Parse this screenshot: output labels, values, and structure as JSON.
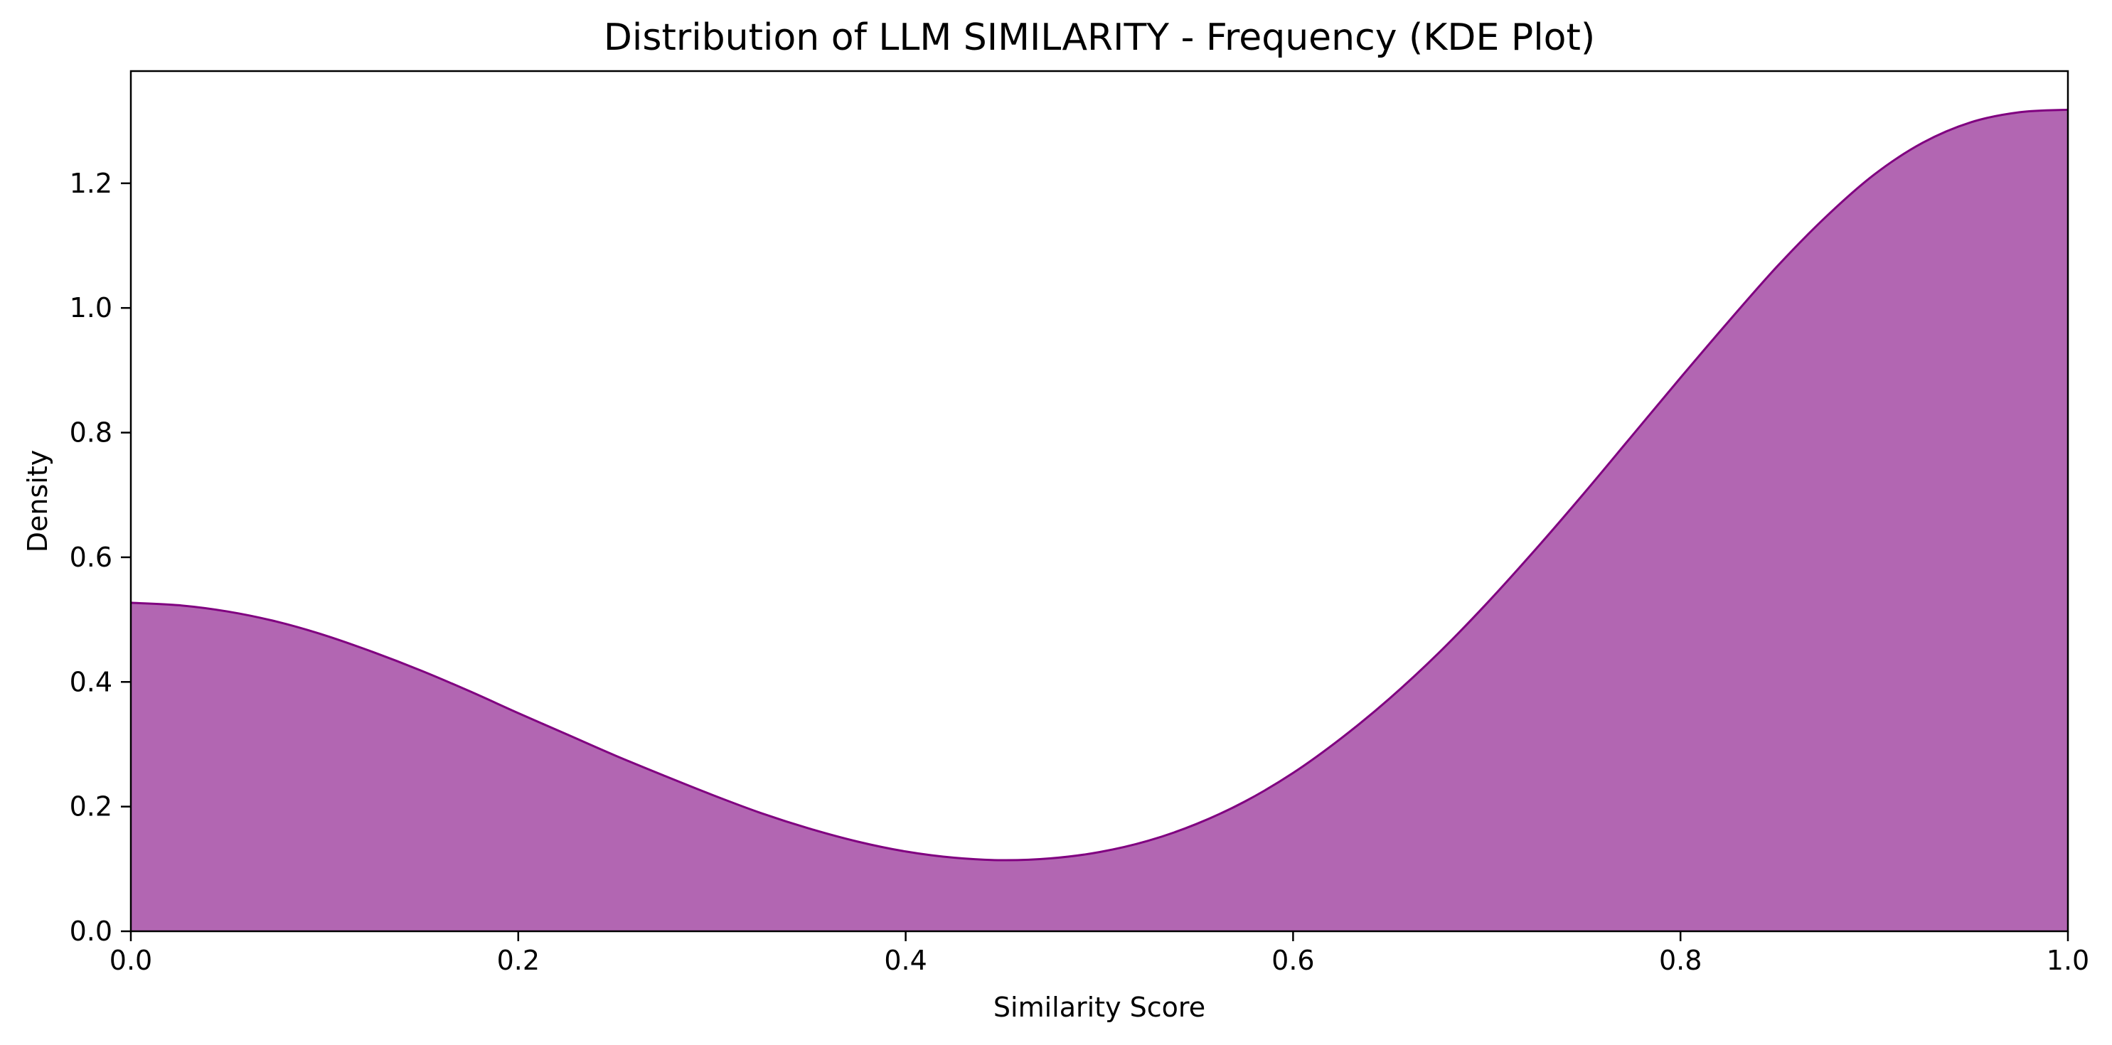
{
  "chart_data": {
    "type": "area",
    "title": "Distribution of LLM SIMILARITY - Frequency (KDE Plot)",
    "xlabel": "Similarity Score",
    "ylabel": "Density",
    "xlim": [
      0.0,
      1.0
    ],
    "ylim": [
      0.0,
      1.38
    ],
    "x_ticks": [
      "0.0",
      "0.2",
      "0.4",
      "0.6",
      "0.8",
      "1.0"
    ],
    "y_ticks": [
      "0.0",
      "0.2",
      "0.4",
      "0.6",
      "0.8",
      "1.0",
      "1.2"
    ],
    "grid": false,
    "fill_color": "#b266b2",
    "line_color": "#800080",
    "series": [
      {
        "x": [
          0.0,
          0.025,
          0.05,
          0.075,
          0.1,
          0.125,
          0.15,
          0.175,
          0.2,
          0.225,
          0.25,
          0.275,
          0.3,
          0.325,
          0.35,
          0.375,
          0.4,
          0.425,
          0.45,
          0.475,
          0.5,
          0.525,
          0.55,
          0.575,
          0.6,
          0.625,
          0.65,
          0.675,
          0.7,
          0.725,
          0.75,
          0.775,
          0.8,
          0.825,
          0.85,
          0.875,
          0.9,
          0.925,
          0.95,
          0.975,
          1.0
        ],
        "y": [
          0.527,
          0.523,
          0.513,
          0.497,
          0.475,
          0.448,
          0.418,
          0.385,
          0.35,
          0.316,
          0.282,
          0.25,
          0.219,
          0.19,
          0.165,
          0.144,
          0.128,
          0.118,
          0.114,
          0.117,
          0.127,
          0.145,
          0.172,
          0.208,
          0.254,
          0.31,
          0.374,
          0.446,
          0.526,
          0.612,
          0.702,
          0.795,
          0.888,
          0.979,
          1.067,
          1.146,
          1.214,
          1.265,
          1.298,
          1.314,
          1.318
        ]
      }
    ]
  }
}
